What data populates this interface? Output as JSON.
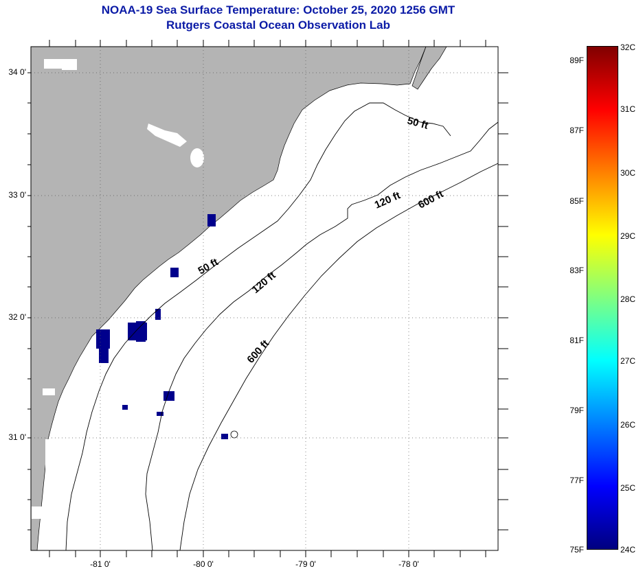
{
  "header": {
    "title_line1": "NOAA-19 Sea Surface Temperature:  October 25, 2020 1256 GMT",
    "title_line2": "Rutgers Coastal Ocean Observation Lab"
  },
  "map": {
    "land_color": "#b4b4b4",
    "ocean_color": "#ffffff",
    "cold_pixel_color": "#00008c",
    "lat_labels": [
      "34 0'",
      "33 0'",
      "32 0'",
      "31 0'"
    ],
    "lon_labels": [
      "-81 0'",
      "-80 0'",
      "-79 0'",
      "-78 0'"
    ],
    "contours": {
      "fifty_a": "50 ft",
      "fifty_b": "50 ft",
      "onetwenty_a": "120 ft",
      "onetwenty_b": "120 ft",
      "sixhundred_a": "600 ft",
      "sixhundred_b": "600 ft"
    }
  },
  "colorbar": {
    "fahrenheit_labels": [
      "89F",
      "87F",
      "85F",
      "83F",
      "81F",
      "79F",
      "77F",
      "75F"
    ],
    "celsius_labels": [
      "32C",
      "31C",
      "30C",
      "29C",
      "28C",
      "27C",
      "26C",
      "25C",
      "24C"
    ],
    "gradient_colors": [
      "#800000",
      "#ff0000",
      "#ff8000",
      "#ffff00",
      "#80ff80",
      "#00ffff",
      "#0080ff",
      "#0000ff",
      "#000080"
    ]
  }
}
